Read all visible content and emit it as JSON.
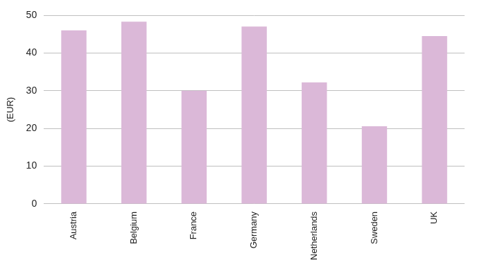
{
  "chart_data": {
    "type": "bar",
    "y_label": "(EUR)",
    "categories": [
      "Austria",
      "Belgium",
      "France",
      "Germany",
      "Netherlands",
      "Sweden",
      "UK"
    ],
    "values": [
      46,
      48.3,
      30,
      47,
      32.2,
      20.6,
      44.5
    ],
    "color": "#dbb8d8",
    "ylim": [
      0,
      50
    ],
    "yticks": [
      0,
      10,
      20,
      30,
      40,
      50
    ],
    "grid": true
  }
}
